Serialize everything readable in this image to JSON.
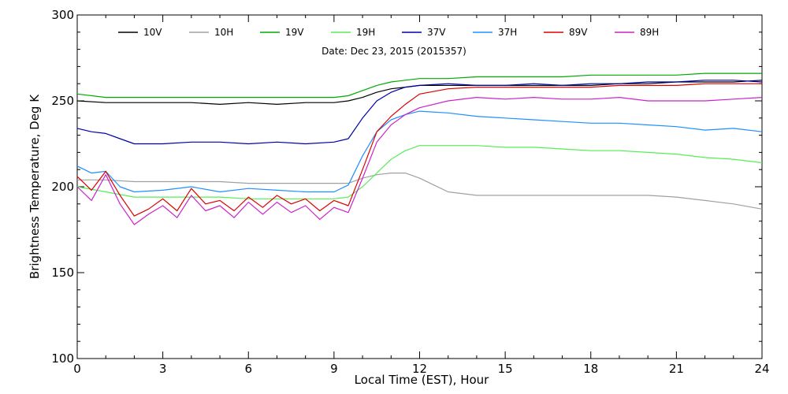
{
  "chart_data": {
    "type": "line",
    "subtitle": "Date: Dec 23, 2015 (2015357)",
    "xlabel": "Local Time (EST), Hour",
    "ylabel": "Brightness Temperature, Deg K",
    "xlim": [
      0,
      24
    ],
    "ylim": [
      100,
      300
    ],
    "xticks": [
      0,
      3,
      6,
      9,
      12,
      15,
      18,
      21,
      24
    ],
    "yticks": [
      100,
      150,
      200,
      250,
      300
    ],
    "grid": false,
    "legend_position": "top",
    "series": [
      {
        "name": "10V",
        "color": "#000000",
        "points": [
          [
            0,
            250
          ],
          [
            1,
            249
          ],
          [
            2,
            249
          ],
          [
            3,
            249
          ],
          [
            4,
            249
          ],
          [
            5,
            248
          ],
          [
            6,
            249
          ],
          [
            7,
            248
          ],
          [
            8,
            249
          ],
          [
            9,
            249
          ],
          [
            9.5,
            250
          ],
          [
            10,
            252
          ],
          [
            10.5,
            255
          ],
          [
            11,
            257
          ],
          [
            11.5,
            258
          ],
          [
            12,
            259
          ],
          [
            13,
            259
          ],
          [
            14,
            259
          ],
          [
            15,
            259
          ],
          [
            16,
            259
          ],
          [
            17,
            259
          ],
          [
            18,
            259
          ],
          [
            19,
            260
          ],
          [
            20,
            260
          ],
          [
            21,
            261
          ],
          [
            22,
            261
          ],
          [
            23,
            261
          ],
          [
            24,
            262
          ]
        ]
      },
      {
        "name": "10H",
        "color": "#a0a0a0",
        "points": [
          [
            0,
            204
          ],
          [
            1,
            204
          ],
          [
            2,
            203
          ],
          [
            3,
            203
          ],
          [
            4,
            203
          ],
          [
            5,
            203
          ],
          [
            6,
            202
          ],
          [
            7,
            202
          ],
          [
            8,
            202
          ],
          [
            9,
            202
          ],
          [
            9.5,
            202
          ],
          [
            10,
            205
          ],
          [
            10.5,
            207
          ],
          [
            11,
            208
          ],
          [
            11.5,
            208
          ],
          [
            12,
            205
          ],
          [
            12.5,
            201
          ],
          [
            13,
            197
          ],
          [
            14,
            195
          ],
          [
            15,
            195
          ],
          [
            16,
            195
          ],
          [
            17,
            195
          ],
          [
            18,
            195
          ],
          [
            19,
            195
          ],
          [
            20,
            195
          ],
          [
            21,
            194
          ],
          [
            22,
            192
          ],
          [
            23,
            190
          ],
          [
            24,
            187
          ]
        ]
      },
      {
        "name": "19V",
        "color": "#00aa00",
        "points": [
          [
            0,
            254
          ],
          [
            1,
            252
          ],
          [
            2,
            252
          ],
          [
            3,
            252
          ],
          [
            4,
            252
          ],
          [
            5,
            252
          ],
          [
            6,
            252
          ],
          [
            7,
            252
          ],
          [
            8,
            252
          ],
          [
            9,
            252
          ],
          [
            9.5,
            253
          ],
          [
            10,
            256
          ],
          [
            10.5,
            259
          ],
          [
            11,
            261
          ],
          [
            11.5,
            262
          ],
          [
            12,
            263
          ],
          [
            13,
            263
          ],
          [
            14,
            264
          ],
          [
            15,
            264
          ],
          [
            16,
            264
          ],
          [
            17,
            264
          ],
          [
            18,
            265
          ],
          [
            19,
            265
          ],
          [
            20,
            265
          ],
          [
            21,
            265
          ],
          [
            22,
            266
          ],
          [
            23,
            266
          ],
          [
            24,
            266
          ]
        ]
      },
      {
        "name": "19H",
        "color": "#55ee55",
        "points": [
          [
            0,
            200
          ],
          [
            1,
            197
          ],
          [
            2,
            194
          ],
          [
            3,
            194
          ],
          [
            4,
            194
          ],
          [
            5,
            194
          ],
          [
            6,
            193
          ],
          [
            7,
            193
          ],
          [
            8,
            193
          ],
          [
            9,
            193
          ],
          [
            9.5,
            194
          ],
          [
            10,
            200
          ],
          [
            10.5,
            208
          ],
          [
            11,
            216
          ],
          [
            11.5,
            221
          ],
          [
            12,
            224
          ],
          [
            13,
            224
          ],
          [
            14,
            224
          ],
          [
            15,
            223
          ],
          [
            16,
            223
          ],
          [
            17,
            222
          ],
          [
            18,
            221
          ],
          [
            19,
            221
          ],
          [
            20,
            220
          ],
          [
            21,
            219
          ],
          [
            22,
            217
          ],
          [
            23,
            216
          ],
          [
            24,
            214
          ]
        ]
      },
      {
        "name": "37V",
        "color": "#0000aa",
        "points": [
          [
            0,
            234
          ],
          [
            0.5,
            232
          ],
          [
            1,
            231
          ],
          [
            1.5,
            228
          ],
          [
            2,
            225
          ],
          [
            3,
            225
          ],
          [
            4,
            226
          ],
          [
            5,
            226
          ],
          [
            6,
            225
          ],
          [
            7,
            226
          ],
          [
            8,
            225
          ],
          [
            9,
            226
          ],
          [
            9.5,
            228
          ],
          [
            10,
            240
          ],
          [
            10.5,
            250
          ],
          [
            11,
            255
          ],
          [
            11.5,
            258
          ],
          [
            12,
            259
          ],
          [
            13,
            260
          ],
          [
            14,
            259
          ],
          [
            15,
            259
          ],
          [
            16,
            260
          ],
          [
            17,
            259
          ],
          [
            18,
            260
          ],
          [
            19,
            260
          ],
          [
            20,
            261
          ],
          [
            21,
            261
          ],
          [
            22,
            262
          ],
          [
            23,
            262
          ],
          [
            24,
            261
          ]
        ]
      },
      {
        "name": "37H",
        "color": "#1e90ff",
        "points": [
          [
            0,
            212
          ],
          [
            0.5,
            208
          ],
          [
            1,
            209
          ],
          [
            1.5,
            200
          ],
          [
            2,
            197
          ],
          [
            3,
            198
          ],
          [
            4,
            200
          ],
          [
            5,
            197
          ],
          [
            6,
            199
          ],
          [
            7,
            198
          ],
          [
            8,
            197
          ],
          [
            9,
            197
          ],
          [
            9.5,
            201
          ],
          [
            10,
            218
          ],
          [
            10.5,
            232
          ],
          [
            11,
            239
          ],
          [
            11.5,
            242
          ],
          [
            12,
            244
          ],
          [
            13,
            243
          ],
          [
            14,
            241
          ],
          [
            15,
            240
          ],
          [
            16,
            239
          ],
          [
            17,
            238
          ],
          [
            18,
            237
          ],
          [
            19,
            237
          ],
          [
            20,
            236
          ],
          [
            21,
            235
          ],
          [
            22,
            233
          ],
          [
            23,
            234
          ],
          [
            24,
            232
          ]
        ]
      },
      {
        "name": "89V",
        "color": "#dd0000",
        "points": [
          [
            0,
            206
          ],
          [
            0.5,
            198
          ],
          [
            1,
            209
          ],
          [
            1.5,
            195
          ],
          [
            2,
            183
          ],
          [
            2.5,
            187
          ],
          [
            3,
            193
          ],
          [
            3.5,
            186
          ],
          [
            4,
            199
          ],
          [
            4.5,
            190
          ],
          [
            5,
            192
          ],
          [
            5.5,
            186
          ],
          [
            6,
            194
          ],
          [
            6.5,
            188
          ],
          [
            7,
            195
          ],
          [
            7.5,
            190
          ],
          [
            8,
            193
          ],
          [
            8.5,
            186
          ],
          [
            9,
            192
          ],
          [
            9.5,
            189
          ],
          [
            10,
            210
          ],
          [
            10.5,
            232
          ],
          [
            11,
            241
          ],
          [
            11.5,
            248
          ],
          [
            12,
            254
          ],
          [
            13,
            257
          ],
          [
            14,
            258
          ],
          [
            15,
            258
          ],
          [
            16,
            258
          ],
          [
            17,
            258
          ],
          [
            18,
            258
          ],
          [
            19,
            259
          ],
          [
            20,
            259
          ],
          [
            21,
            259
          ],
          [
            22,
            260
          ],
          [
            23,
            260
          ],
          [
            24,
            260
          ]
        ]
      },
      {
        "name": "89H",
        "color": "#cc22cc",
        "points": [
          [
            0,
            200
          ],
          [
            0.5,
            192
          ],
          [
            1,
            207
          ],
          [
            1.5,
            190
          ],
          [
            2,
            178
          ],
          [
            2.5,
            184
          ],
          [
            3,
            189
          ],
          [
            3.5,
            182
          ],
          [
            4,
            195
          ],
          [
            4.5,
            186
          ],
          [
            5,
            189
          ],
          [
            5.5,
            182
          ],
          [
            6,
            191
          ],
          [
            6.5,
            184
          ],
          [
            7,
            191
          ],
          [
            7.5,
            185
          ],
          [
            8,
            189
          ],
          [
            8.5,
            181
          ],
          [
            9,
            188
          ],
          [
            9.5,
            185
          ],
          [
            10,
            205
          ],
          [
            10.5,
            226
          ],
          [
            11,
            236
          ],
          [
            11.5,
            242
          ],
          [
            12,
            246
          ],
          [
            13,
            250
          ],
          [
            14,
            252
          ],
          [
            15,
            251
          ],
          [
            16,
            252
          ],
          [
            17,
            251
          ],
          [
            18,
            251
          ],
          [
            19,
            252
          ],
          [
            20,
            250
          ],
          [
            21,
            250
          ],
          [
            22,
            250
          ],
          [
            23,
            251
          ],
          [
            24,
            252
          ]
        ]
      }
    ]
  }
}
